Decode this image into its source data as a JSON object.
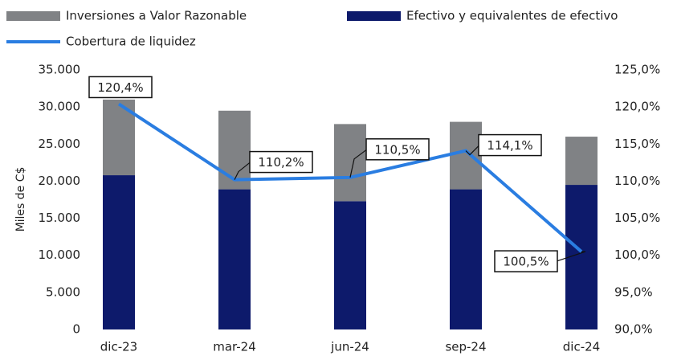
{
  "chart_data": {
    "type": "bar",
    "categories": [
      "dic-23",
      "mar-24",
      "jun-24",
      "sep-24",
      "dic-24"
    ],
    "series": [
      {
        "name": "Efectivo y equivalentes de efectivo",
        "color": "#0d1a6b",
        "values": [
          20800,
          18900,
          17300,
          18900,
          19500
        ]
      },
      {
        "name": "Inversiones a Valor Razonable",
        "color": "#808285",
        "values": [
          10200,
          10600,
          10400,
          9100,
          6500
        ]
      },
      {
        "name": "Cobertura de liquidez",
        "color": "#2a7de1",
        "type": "line",
        "axis": "y2",
        "values": [
          120.4,
          110.2,
          110.5,
          114.1,
          100.5
        ],
        "value_labels": [
          "120,4%",
          "110,2%",
          "110,5%",
          "114,1%",
          "100,5%"
        ]
      }
    ],
    "ylabel": "Miles de C$",
    "ylim": [
      0,
      35000
    ],
    "yticks": [
      0,
      {
        "value": 5000,
        "label": "5.000"
      },
      {
        "value": 10000,
        "label": "10.000"
      },
      {
        "value": 15000,
        "label": "15.000"
      },
      {
        "value": 20000,
        "label": "20.000"
      },
      {
        "value": 25000,
        "label": "25.000"
      },
      {
        "value": 30000,
        "label": "30.000"
      },
      {
        "value": 35000,
        "label": "35.000"
      }
    ],
    "y2lim": [
      90,
      125
    ],
    "y2ticks": [
      {
        "value": 90,
        "label": "90,0%"
      },
      {
        "value": 95,
        "label": "95,0%"
      },
      {
        "value": 100,
        "label": "100,0%"
      },
      {
        "value": 105,
        "label": "105,0%"
      },
      {
        "value": 110,
        "label": "110,0%"
      },
      {
        "value": 115,
        "label": "115,0%"
      },
      {
        "value": 120,
        "label": "120,0%"
      },
      {
        "value": 125,
        "label": "125,0%"
      }
    ],
    "stacked": true
  }
}
